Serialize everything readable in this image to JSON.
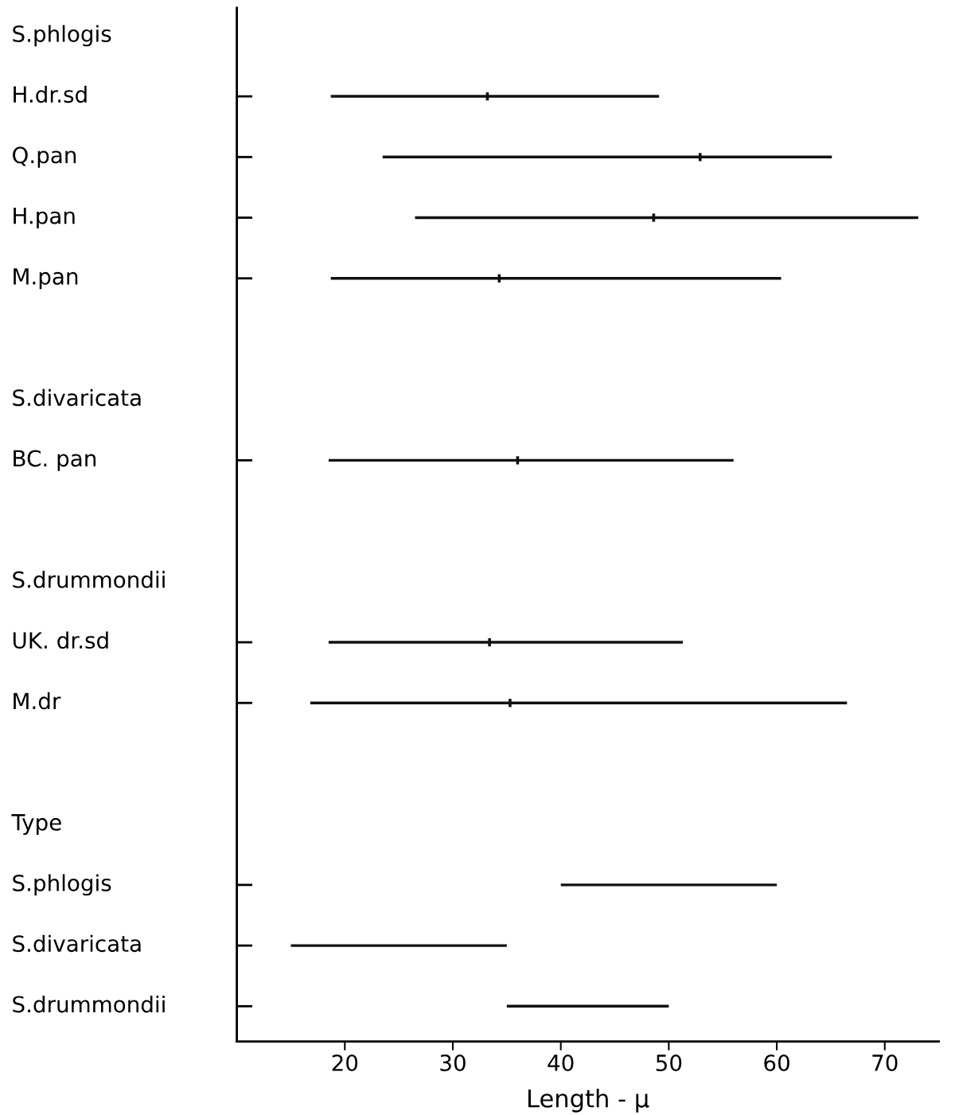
{
  "chart_data": {
    "type": "bar",
    "orientation": "horizontal",
    "xlabel": "Length - μ",
    "categories": [
      "S.phlogis",
      "H.dr.sd",
      "Q.pan",
      "H.pan",
      "M.pan",
      null,
      "S.divaricata",
      "BC. pan",
      null,
      "S.drummondii",
      "UK. dr.sd",
      "M.dr",
      null,
      "Type",
      "S.phlogis",
      "S.divaricata",
      "S.drummondii"
    ],
    "series": [
      {
        "type": "bar",
        "color": "#111111",
        "base": [
          null,
          18.7,
          23.5,
          26.5,
          18.7,
          null,
          null,
          18.5,
          null,
          null,
          18.5,
          16.8,
          null,
          null,
          40,
          15,
          35
        ],
        "values": [
          null,
          30.4,
          41.6,
          46.6,
          41.7,
          null,
          null,
          37.5,
          null,
          null,
          32.8,
          49.7,
          null,
          null,
          20,
          20,
          15
        ]
      },
      {
        "type": "scatter",
        "color": "#111111",
        "values": [
          null,
          33.2,
          52.9,
          48.6,
          34.3,
          null,
          null,
          36.0,
          null,
          null,
          33.4,
          35.3,
          null,
          null,
          null,
          null,
          null
        ]
      }
    ],
    "xlim": [
      10,
      75
    ],
    "xticks": [
      20,
      30,
      40,
      50,
      60,
      70
    ],
    "grid": false,
    "legend": false
  }
}
